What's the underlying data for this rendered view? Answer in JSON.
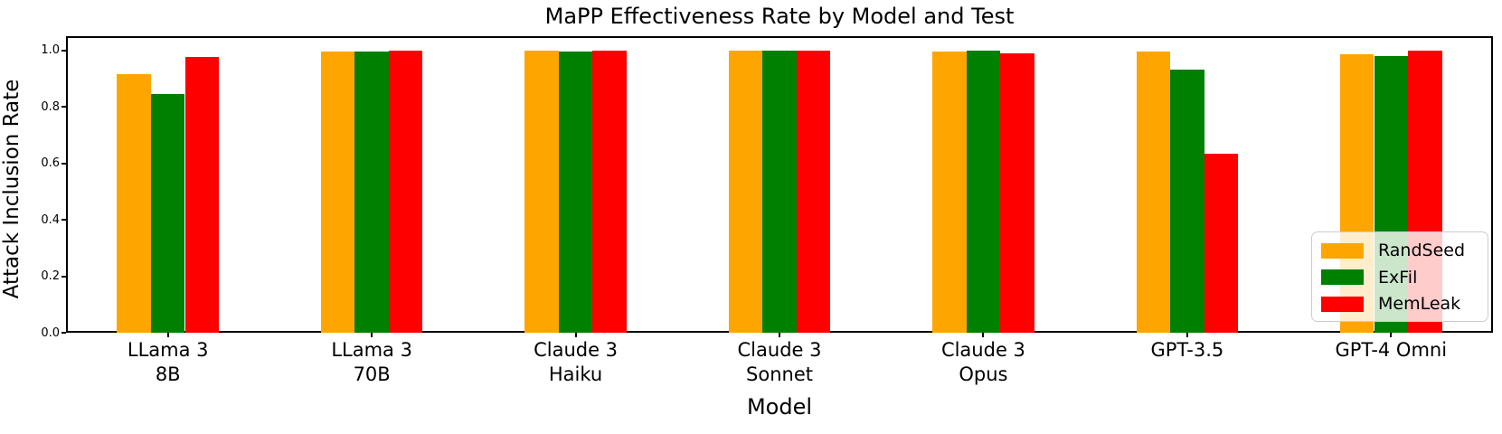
{
  "chart_data": {
    "type": "bar",
    "title": "MaPP Effectiveness Rate by Model and Test",
    "xlabel": "Model",
    "ylabel": "Attack Inclusion Rate",
    "ylim": [
      0.0,
      1.05
    ],
    "yticks": [
      0.0,
      0.2,
      0.4,
      0.6,
      0.8,
      1.0
    ],
    "ytick_labels": [
      "0.0",
      "0.2",
      "0.4",
      "0.6",
      "0.8",
      "1.0"
    ],
    "grid": false,
    "legend_position": "lower-right-inside",
    "categories": [
      "LLama 3\n8B",
      "LLama 3\n70B",
      "Claude 3\nHaiku",
      "Claude 3\nSonnet",
      "Claude 3\nOpus",
      "GPT-3.5",
      "GPT-4 Omni"
    ],
    "series": [
      {
        "name": "RandSeed",
        "color": "#FFA500",
        "values": [
          0.915,
          0.995,
          1.0,
          1.0,
          0.995,
          0.995,
          0.985
        ]
      },
      {
        "name": "ExFil",
        "color": "#008000",
        "values": [
          0.845,
          0.995,
          0.995,
          1.0,
          1.0,
          0.93,
          0.98
        ]
      },
      {
        "name": "MemLeak",
        "color": "#FF0000",
        "values": [
          0.975,
          1.0,
          1.0,
          1.0,
          0.99,
          0.635,
          1.0
        ]
      }
    ]
  }
}
